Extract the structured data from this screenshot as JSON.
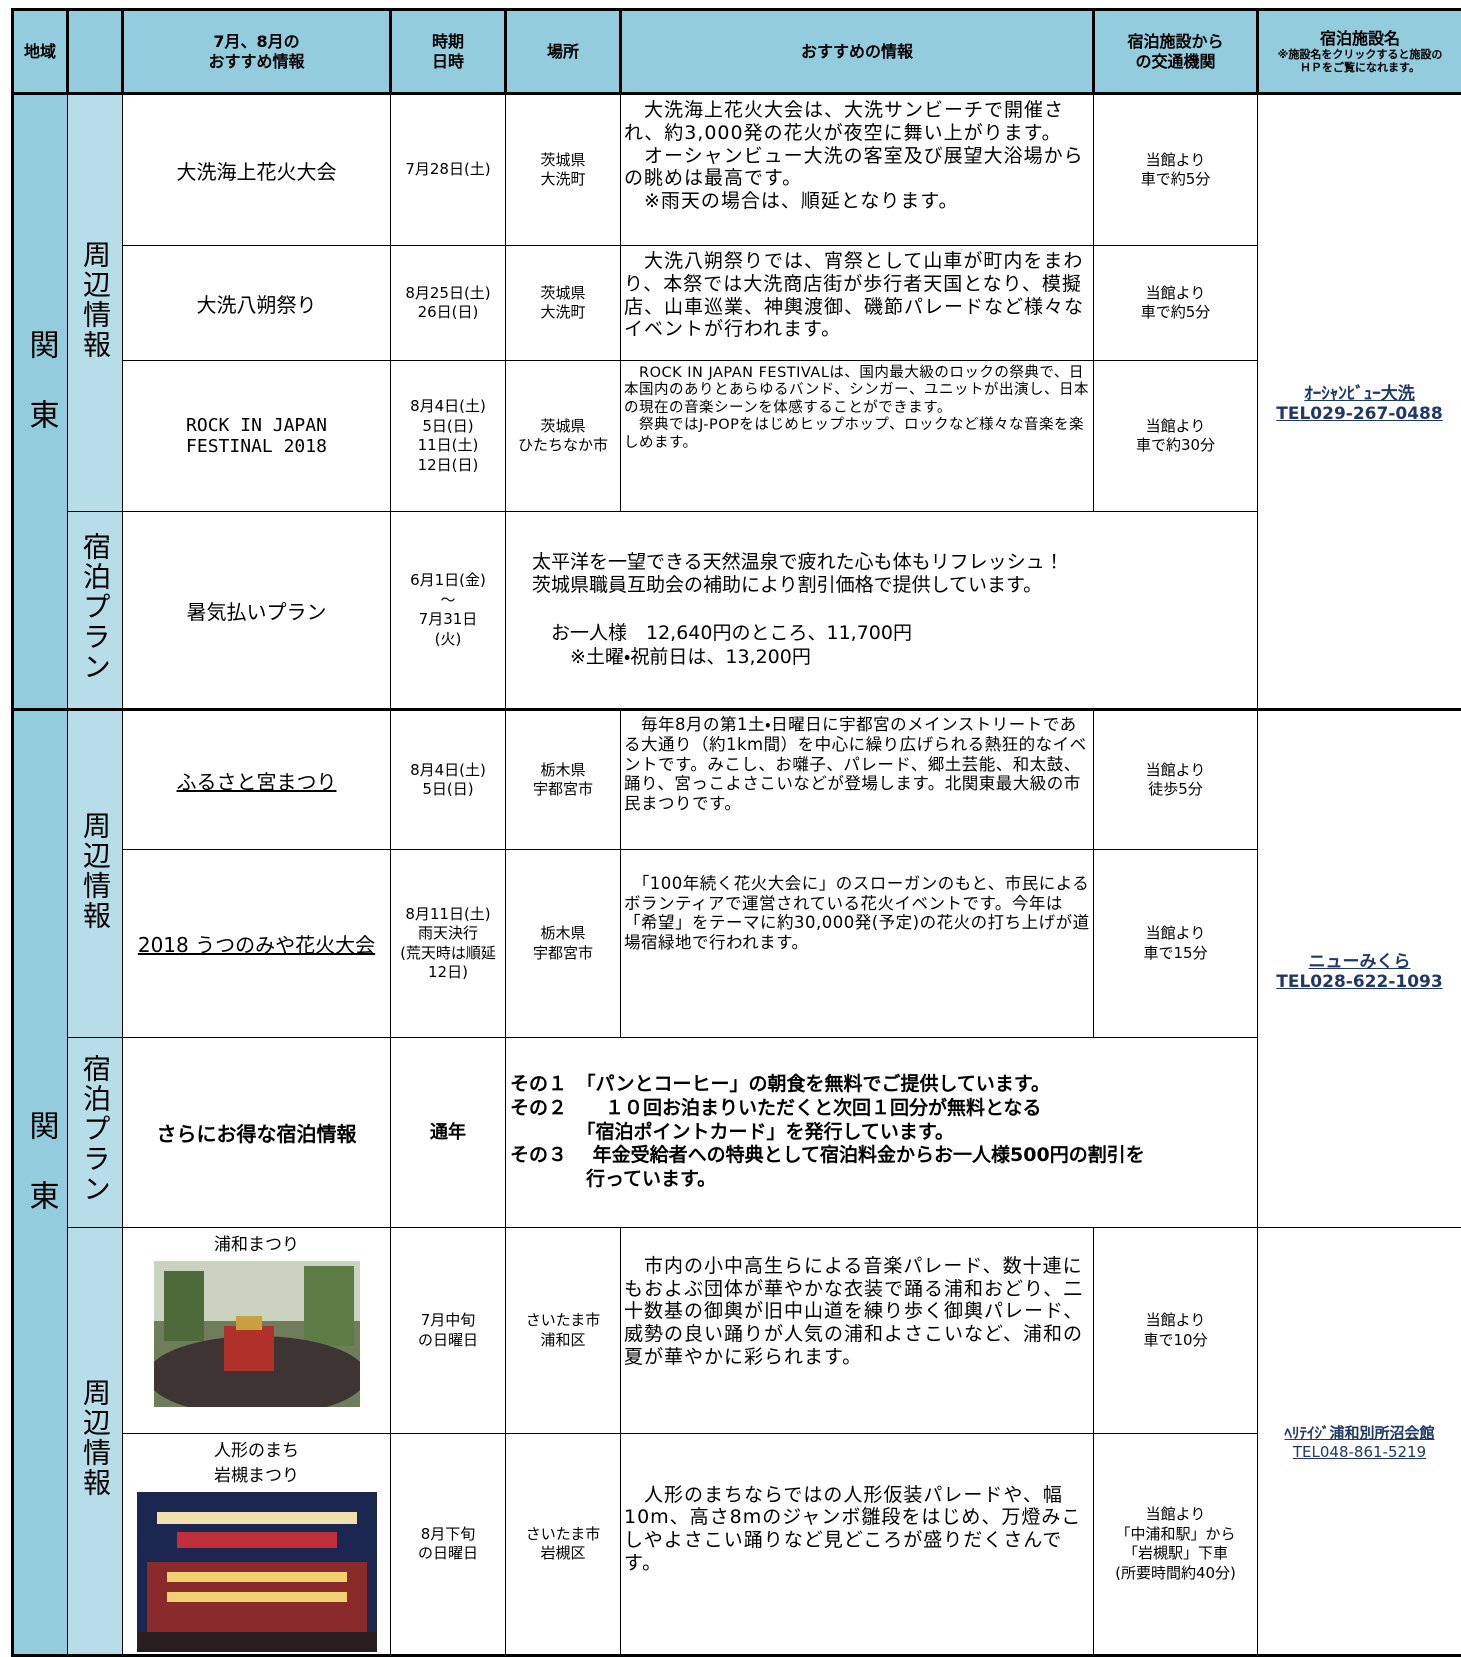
{
  "header": {
    "region": "地域",
    "event": "7月、8月の\nおすすめ情報",
    "date": "時期\n日時",
    "place": "場所",
    "info": "おすすめの情報",
    "access": "宿泊施設から\nの交通機関",
    "hotel": "宿泊施設名",
    "hotel_note": "※施設名をクリックすると施設の\nＨＰをご覧になれます。"
  },
  "regions": [
    "関東",
    "関東"
  ],
  "categories": [
    "周辺情報",
    "宿泊プラン",
    "周辺情報",
    "宿泊プラン",
    "周辺情報"
  ],
  "rows": [
    {
      "event": "大洗海上花火大会",
      "date": "7月28日(土)",
      "place": "茨城県\n大洗町",
      "info": "　大洗海上花火大会は、大洗サンビーチで開催され、約3,000発の花火が夜空に舞い上がります。\n　オーシャンビュー大洗の客室及び展望大浴場からの眺めは最高です。\n　※雨天の場合は、順延となります。",
      "access": "当館より\n車で約5分"
    },
    {
      "event": "大洗八朔祭り",
      "date": "8月25日(土)\n26日(日)",
      "place": "茨城県\n大洗町",
      "info": "　大洗八朔祭りでは、宵祭として山車が町内をまわり、本祭では大洗商店街が歩行者天国となり、模擬店、山車巡業、神輿渡御、磯節パレードなど様々なイベントが行われます。",
      "access": "当館より\n車で約5分"
    },
    {
      "event": "ROCK IN JAPAN\nFESTINAL 2018",
      "date": "8月4日(土)\n5日(日)\n11日(土)\n12日(日)",
      "place": "茨城県\nひたちなか市",
      "info": "　ROCK IN JAPAN FESTIVALは、国内最大級のロックの祭典で、日本国内のありとあらゆるバンド、シンガー、ユニットが出演し、日本の現在の音楽シーンを体感することができます。\n　祭典ではJ-POPをはじめヒップホップ、ロックなど様々な音楽を楽しめます。",
      "access": "当館より\n車で約30分"
    },
    {
      "event": "暑気払いプラン",
      "date": "6月1日(金)\n～\n7月31日\n(火)",
      "info": "太平洋を一望できる天然温泉で疲れた心も体もリフレッシュ！\n茨城県職員互助会の補助により割引価格で提供しています。\n\n　お一人様　12,640円のところ、11,700円\n　　※土曜・祝前日は、13,200円"
    },
    {
      "event": "ふるさと宮まつり",
      "date": "8月4日(土)\n5日(日)",
      "place": "栃木県\n宇都宮市",
      "info": "　毎年8月の第1土・日曜日に宇都宮のメインストリートである大通り（約1km間）を中心に繰り広げられる熱狂的なイベントです。みこし、お囃子、パレード、郷土芸能、和太鼓、踊り、宮っこよさこいなどが登場します。北関東最大級の市民まつりです。",
      "access": "当館より\n徒歩5分"
    },
    {
      "event": "2018 うつのみや花火大会",
      "date": "8月11日(土)\n雨天決行\n(荒天時は順延\n12日)",
      "place": "栃木県\n宇都宮市",
      "info": "\n　「100年続く花火大会に」のスローガンのもと、市民によるボランティアで運営されている花火イベントです。今年は「希望」をテーマに約30,000発(予定)の花火の打ち上げが道場宿緑地で行われます。",
      "access": "当館より\n車で15分"
    },
    {
      "event": "さらにお得な宿泊情報",
      "date": "通年",
      "info": "その１　「パンとコーヒー」の朝食を無料でご提供しています。\nその２　　１０回お泊まりいただくと次回１回分が無料となる\n　　　　「宿泊ポイントカード」を発行しています。\nその３　 年金受給者への特典として宿泊料金からお一人様500円の割引を\n　　　　行っています。"
    },
    {
      "event": "浦和まつり",
      "date": "7月中旬\nの日曜日",
      "place": "さいたま市\n浦和区",
      "info": "\n　市内の小中高生らによる音楽パレード、数十連にもおよぶ団体が華やかな衣装で踊る浦和おどり、二十数基の御輿が旧中山道を練り歩く御輿パレード、威勢の良い踊りが人気の浦和よさこいなど、浦和の夏が華やかに彩られます。",
      "access": "当館より\n車で10分"
    },
    {
      "event": "人形のまち\n岩槻まつり",
      "date": "8月下旬\nの日曜日",
      "place": "さいたま市\n岩槻区",
      "info": "\n\n　人形のまちならではの人形仮装パレードや、幅10m、高さ8mのジャンボ雛段をはじめ、万燈みこしやよさこい踊りなど見どころが盛りだくさんです。",
      "access": "当館より\n「中浦和駅」から\n「岩槻駅」下車\n(所要時間約40分)"
    }
  ],
  "hotels": [
    {
      "name": "ｵｰｼｬﾝﾋﾞｭｰ大洗",
      "tel": "TEL029-267-0488"
    },
    {
      "name": "ニューみくら",
      "tel": "TEL028-622-1093"
    },
    {
      "name": "ﾍﾘﾃｲｼﾞ浦和別所沼会館",
      "tel": "TEL048-861-5219"
    }
  ]
}
